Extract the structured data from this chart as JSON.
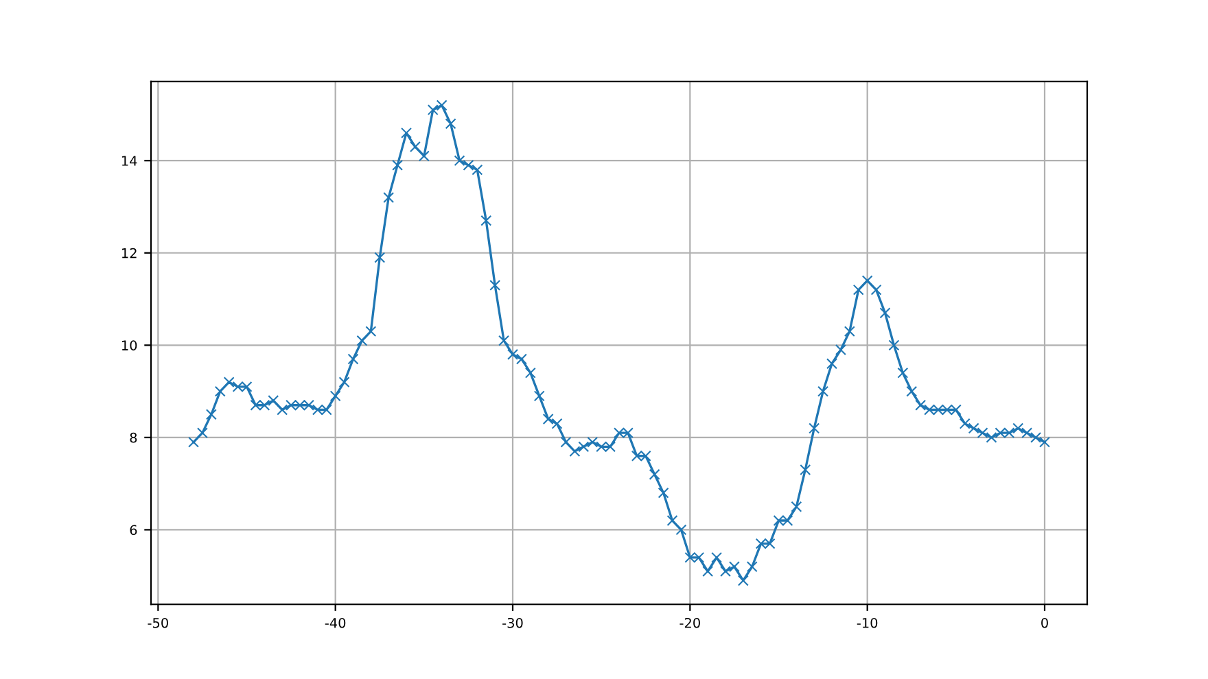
{
  "chart_data": {
    "type": "line",
    "x": [
      -48,
      -47.5,
      -47,
      -46.5,
      -46,
      -45.5,
      -45,
      -44.5,
      -44,
      -43.5,
      -43,
      -42.5,
      -42,
      -41.5,
      -41,
      -40.5,
      -40,
      -39.5,
      -39,
      -38.5,
      -38,
      -37.5,
      -37,
      -36.5,
      -36,
      -35.5,
      -35,
      -34.5,
      -34,
      -33.5,
      -33,
      -32.5,
      -32,
      -31.5,
      -31,
      -30.5,
      -30,
      -29.5,
      -29,
      -28.5,
      -28,
      -27.5,
      -27,
      -26.5,
      -26,
      -25.5,
      -25,
      -24.5,
      -24,
      -23.5,
      -23,
      -22.5,
      -22,
      -21.5,
      -21,
      -20.5,
      -20,
      -19.5,
      -19,
      -18.5,
      -18,
      -17.5,
      -17,
      -16.5,
      -16,
      -15.5,
      -15,
      -14.5,
      -14,
      -13.5,
      -13,
      -12.5,
      -12,
      -11.5,
      -11,
      -10.5,
      -10,
      -9.5,
      -9,
      -8.5,
      -8,
      -7.5,
      -7,
      -6.5,
      -6,
      -5.5,
      -5,
      -4.5,
      -4,
      -3.5,
      -3,
      -2.5,
      -2,
      -1.5,
      -1,
      -0.5,
      0
    ],
    "series": [
      {
        "color": "#1f77b4",
        "values": [
          7.9,
          8.1,
          8.5,
          9.0,
          9.2,
          9.1,
          9.1,
          8.7,
          8.7,
          8.8,
          8.6,
          8.7,
          8.7,
          8.7,
          8.6,
          8.6,
          8.9,
          9.2,
          9.7,
          10.1,
          10.3,
          11.9,
          13.2,
          13.9,
          14.6,
          14.3,
          14.1,
          15.1,
          15.2,
          14.8,
          14.0,
          13.9,
          13.8,
          12.7,
          11.3,
          10.1,
          9.8,
          9.7,
          9.4,
          8.9,
          8.4,
          8.3,
          7.9,
          7.7,
          7.8,
          7.9,
          7.8,
          7.8,
          8.1,
          8.1,
          7.6,
          7.6,
          7.2,
          6.8,
          6.2,
          6.0,
          5.4,
          5.4,
          5.1,
          5.4,
          5.1,
          5.2,
          4.9,
          5.2,
          5.7,
          5.7,
          6.2,
          6.2,
          6.5,
          7.3,
          8.2,
          9.0,
          9.6,
          9.9,
          10.3,
          11.2,
          11.4,
          11.2,
          10.7,
          10.0,
          9.4,
          9.0,
          8.7,
          8.6,
          8.6,
          8.6,
          8.6,
          8.3,
          8.2,
          8.1,
          8.0,
          8.1,
          8.1,
          8.2,
          8.1,
          8.0,
          7.9
        ]
      }
    ],
    "xlim": [
      -50.4,
      2.4
    ],
    "ylim": [
      4.385,
      15.715
    ],
    "xticks": [
      -50,
      -40,
      -30,
      -20,
      -10,
      0
    ],
    "yticks": [
      6,
      8,
      10,
      12,
      14
    ],
    "grid": true,
    "marker": "cross",
    "line_style": "solid"
  }
}
